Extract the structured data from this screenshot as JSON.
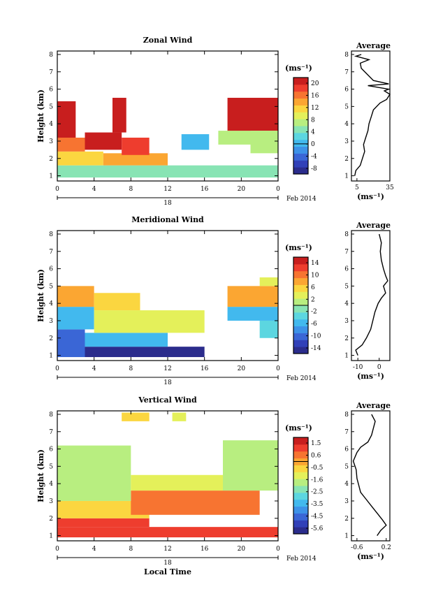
{
  "chart_data": [
    {
      "type": "heatmap",
      "title": "Zonal Wind",
      "ylabel": "Height (km)",
      "unit": "(ms⁻¹)",
      "x_ticks": [
        "0",
        "4",
        "8",
        "12",
        "16",
        "20",
        "0"
      ],
      "y_ticks": [
        "1",
        "2",
        "3",
        "4",
        "5",
        "6",
        "7",
        "8"
      ],
      "ylim": [
        0.7,
        8.2
      ],
      "date_label": "Feb 2014",
      "date_ticks": [
        "18"
      ],
      "colorbar_ticks": [
        "20",
        "16",
        "12",
        "8",
        "4",
        "0",
        "-4",
        "-8"
      ],
      "colorbar_range": [
        -10,
        22
      ],
      "layers": [
        {
          "x0": 0,
          "x1": 24,
          "z0": 0.9,
          "z1": 1.6,
          "value": 5
        },
        {
          "x0": 0,
          "x1": 5,
          "z0": 1.6,
          "z1": 2.4,
          "value": 12
        },
        {
          "x0": 5,
          "x1": 12,
          "z0": 1.6,
          "z1": 2.3,
          "value": 14
        },
        {
          "x0": 0,
          "x1": 3,
          "z0": 2.4,
          "z1": 3.2,
          "value": 17
        },
        {
          "x0": 0,
          "x1": 2,
          "z0": 3.2,
          "z1": 5.3,
          "value": 22
        },
        {
          "x0": 3,
          "x1": 7,
          "z0": 2.5,
          "z1": 3.5,
          "value": 20
        },
        {
          "x0": 6,
          "x1": 7.5,
          "z0": 3.5,
          "z1": 5.5,
          "value": 22
        },
        {
          "x0": 7,
          "x1": 10,
          "z0": 2.2,
          "z1": 3.2,
          "value": 18
        },
        {
          "x0": 13.5,
          "x1": 16.5,
          "z0": 2.5,
          "z1": 3.4,
          "value": 0
        },
        {
          "x0": 17.5,
          "x1": 21,
          "z0": 2.8,
          "z1": 3.6,
          "value": 8
        },
        {
          "x0": 18.5,
          "x1": 24,
          "z0": 3.6,
          "z1": 5.5,
          "value": 22
        },
        {
          "x0": 21,
          "x1": 24,
          "z0": 2.3,
          "z1": 3.6,
          "value": 7
        }
      ],
      "profile": {
        "title": "Average",
        "xlabel": "(ms⁻¹)",
        "x_ticks": [
          "5",
          "35"
        ],
        "xlim": [
          0,
          35
        ],
        "ylim": [
          0.7,
          8.2
        ],
        "z": [
          1.0,
          1.3,
          1.6,
          2.0,
          2.4,
          2.8,
          3.2,
          3.6,
          4.0,
          4.4,
          4.8,
          5.2,
          5.4,
          5.7,
          5.9,
          6.0,
          6.2,
          6.3,
          6.5,
          7.2,
          7.5,
          7.7,
          7.9,
          8.0
        ],
        "u": [
          3,
          4,
          8,
          10,
          12,
          11,
          13,
          15,
          16,
          18,
          20,
          26,
          32,
          35,
          30,
          34,
          15,
          34,
          20,
          9,
          8,
          16,
          4,
          9
        ]
      }
    },
    {
      "type": "heatmap",
      "title": "Meridional Wind",
      "ylabel": "Height (km)",
      "unit": "(ms⁻¹)",
      "x_ticks": [
        "0",
        "4",
        "8",
        "12",
        "16",
        "20",
        "0"
      ],
      "y_ticks": [
        "1",
        "2",
        "3",
        "4",
        "5",
        "6",
        "7",
        "8"
      ],
      "ylim": [
        0.7,
        8.2
      ],
      "date_label": "Feb 2014",
      "date_ticks": [
        "18"
      ],
      "colorbar_ticks": [
        "14",
        "10",
        "6",
        "2",
        "-2",
        "-6",
        "-10",
        "-14"
      ],
      "colorbar_range": [
        -16,
        16
      ],
      "layers": [
        {
          "x0": 0,
          "x1": 3,
          "z0": 0.9,
          "z1": 2.5,
          "value": -10
        },
        {
          "x0": 3,
          "x1": 16,
          "z0": 0.9,
          "z1": 1.5,
          "value": -14
        },
        {
          "x0": 3,
          "x1": 12,
          "z0": 1.5,
          "z1": 2.3,
          "value": -6
        },
        {
          "x0": 0,
          "x1": 4,
          "z0": 2.5,
          "z1": 3.8,
          "value": -5
        },
        {
          "x0": 0,
          "x1": 4,
          "z0": 3.8,
          "z1": 5.0,
          "value": 7
        },
        {
          "x0": 4,
          "x1": 16,
          "z0": 2.3,
          "z1": 3.6,
          "value": 3
        },
        {
          "x0": 4,
          "x1": 9,
          "z0": 3.6,
          "z1": 4.6,
          "value": 5
        },
        {
          "x0": 18.5,
          "x1": 24,
          "z0": 3.0,
          "z1": 3.8,
          "value": -5
        },
        {
          "x0": 18.5,
          "x1": 24,
          "z0": 3.8,
          "z1": 5.0,
          "value": 7
        },
        {
          "x0": 22,
          "x1": 24,
          "z0": 5.0,
          "z1": 5.5,
          "value": 4
        },
        {
          "x0": 22,
          "x1": 24,
          "z0": 2.0,
          "z1": 3.0,
          "value": -4
        }
      ],
      "profile": {
        "title": "Average",
        "xlabel": "(ms⁻¹)",
        "x_ticks": [
          "-10",
          "0"
        ],
        "xlim": [
          -13,
          5
        ],
        "ylim": [
          0.7,
          8.2
        ],
        "z": [
          1.0,
          1.3,
          1.6,
          2.0,
          2.5,
          3.0,
          3.5,
          4.0,
          4.3,
          4.6,
          5.0,
          5.3,
          5.6,
          6.0,
          6.5,
          7.0,
          7.5,
          8.0
        ],
        "u": [
          -10,
          -11,
          -8,
          -6,
          -4,
          -3,
          -2,
          -0.5,
          1,
          3,
          2,
          4,
          3,
          2,
          1,
          0.5,
          1,
          0
        ]
      }
    },
    {
      "type": "heatmap",
      "title": "Vertical Wind",
      "ylabel": "Height (km)",
      "xlabel": "Local Time",
      "unit": "(ms⁻¹)",
      "x_ticks": [
        "0",
        "4",
        "8",
        "12",
        "16",
        "20",
        "0"
      ],
      "y_ticks": [
        "1",
        "2",
        "3",
        "4",
        "5",
        "6",
        "7",
        "8"
      ],
      "ylim": [
        0.7,
        8.2
      ],
      "date_label": "Feb 2014",
      "date_ticks": [
        "18"
      ],
      "colorbar_ticks": [
        "1.5",
        "0.6",
        "-0.5",
        "-1.6",
        "-2.5",
        "-3.5",
        "-4.5",
        "-5.6"
      ],
      "colorbar_range": [
        -6,
        2
      ],
      "layers": [
        {
          "x0": 0,
          "x1": 24,
          "z0": 0.9,
          "z1": 1.5,
          "value": 0.9
        },
        {
          "x0": 0,
          "x1": 10,
          "z0": 1.5,
          "z1": 2.0,
          "value": 1.2
        },
        {
          "x0": 0,
          "x1": 10,
          "z0": 2.0,
          "z1": 3.0,
          "value": -0.8
        },
        {
          "x0": 8,
          "x1": 22,
          "z0": 2.2,
          "z1": 3.6,
          "value": 0.5
        },
        {
          "x0": 0,
          "x1": 8,
          "z0": 3.0,
          "z1": 6.2,
          "value": -1.6
        },
        {
          "x0": 8,
          "x1": 18,
          "z0": 3.6,
          "z1": 4.5,
          "value": -1.2
        },
        {
          "x0": 18,
          "x1": 24,
          "z0": 3.6,
          "z1": 6.5,
          "value": -1.8
        },
        {
          "x0": 7,
          "x1": 10,
          "z0": 7.6,
          "z1": 8.1,
          "value": -0.4
        },
        {
          "x0": 12.5,
          "x1": 14,
          "z0": 7.6,
          "z1": 8.1,
          "value": -0.9
        }
      ],
      "profile": {
        "title": "Average",
        "xlabel": "(ms⁻¹)",
        "x_ticks": [
          "-0.6",
          "0.2"
        ],
        "xlim": [
          -0.75,
          0.3
        ],
        "ylim": [
          0.7,
          8.2
        ],
        "z": [
          1.0,
          1.3,
          1.6,
          1.9,
          2.3,
          2.7,
          3.1,
          3.5,
          3.9,
          4.3,
          4.8,
          5.3,
          5.8,
          6.1,
          6.4,
          6.8,
          7.2,
          7.6,
          8.0
        ],
        "u": [
          -0.05,
          0.05,
          0.2,
          0.1,
          -0.05,
          -0.2,
          -0.35,
          -0.5,
          -0.55,
          -0.6,
          -0.62,
          -0.7,
          -0.6,
          -0.5,
          -0.3,
          -0.2,
          -0.15,
          -0.1,
          -0.2
        ]
      }
    }
  ]
}
